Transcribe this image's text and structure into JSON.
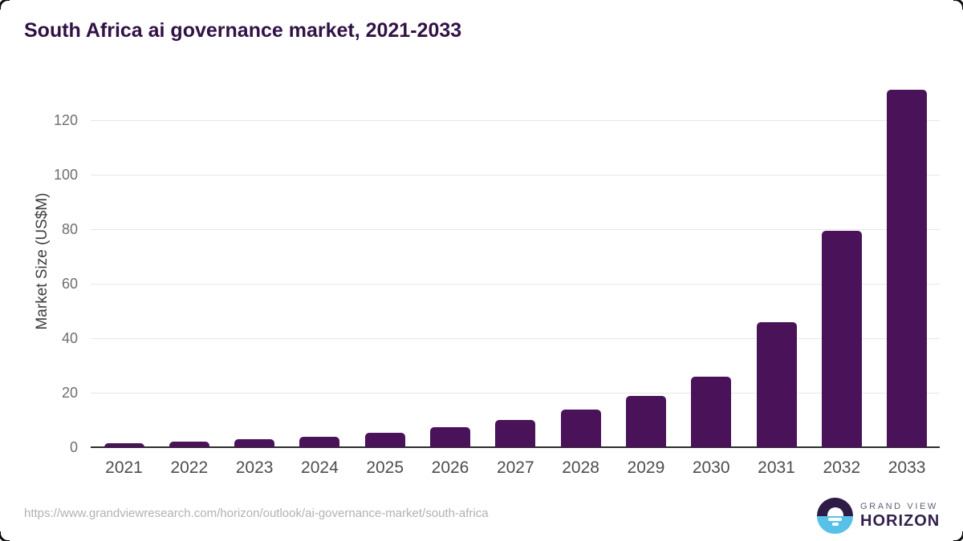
{
  "title": "South Africa ai governance market, 2021-2033",
  "chart_data": {
    "type": "bar",
    "title": "South Africa ai governance market, 2021-2033",
    "categories": [
      "2021",
      "2022",
      "2023",
      "2024",
      "2025",
      "2026",
      "2027",
      "2028",
      "2029",
      "2030",
      "2031",
      "2032",
      "2033"
    ],
    "values": [
      1.6,
      2.0,
      2.9,
      3.9,
      5.2,
      7.3,
      10.0,
      13.8,
      18.9,
      25.8,
      46.0,
      79.3,
      131.3
    ],
    "xlabel": "",
    "ylabel": "Market Size (US$M)",
    "ylim": [
      0,
      120
    ],
    "yticks": [
      0,
      20,
      40,
      60,
      80,
      100,
      120
    ],
    "grid": true,
    "legend_position": "none",
    "bar_color": "#4a1259"
  },
  "colors": {
    "title_text": "#301245",
    "bar_fill": "#4a1259",
    "gridline": "#e7e7e7",
    "axis_line": "#2d2d2d",
    "tick_text": "#6e6e6e",
    "x_label_text": "#4d4d4d",
    "footer_text": "#b2b2b2",
    "logo_dark": "#2e1c47",
    "logo_blue": "#58c1e9"
  },
  "footer": {
    "source_url": "https://www.grandviewresearch.com/horizon/outlook/ai-governance-market/south-africa",
    "brand_line1": "GRAND VIEW",
    "brand_line2": "HORIZON"
  }
}
